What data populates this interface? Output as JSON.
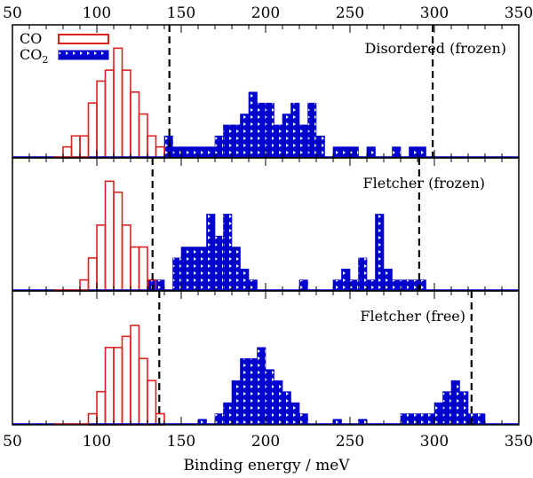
{
  "chart_data": {
    "type": "bar",
    "orientation": "histogram",
    "xlabel": "Binding energy / meV",
    "xlim": [
      50,
      350
    ],
    "xticks": [
      50,
      100,
      150,
      200,
      250,
      300,
      350
    ],
    "xtick_labels": [
      "50",
      "100",
      "150",
      "200",
      "250",
      "300",
      "350"
    ],
    "bin_width": 5,
    "legend": {
      "placement": "top-left",
      "entries": [
        {
          "label": "CO",
          "color": "#dd2222",
          "style": "outline"
        },
        {
          "label": "CO",
          "subscript": "2",
          "color": "#0000cc",
          "style": "filled"
        }
      ]
    },
    "panels": [
      {
        "label": "Disordered (frozen)",
        "ymax": 11,
        "vlines": [
          143,
          299
        ],
        "series": [
          {
            "name": "CO",
            "color": "#dd2222",
            "bins": [
              [
                80,
                1
              ],
              [
                85,
                2
              ],
              [
                90,
                2
              ],
              [
                95,
                5
              ],
              [
                100,
                7
              ],
              [
                105,
                8
              ],
              [
                110,
                10
              ],
              [
                115,
                8
              ],
              [
                120,
                6
              ],
              [
                125,
                4
              ],
              [
                130,
                2
              ],
              [
                135,
                1
              ]
            ]
          },
          {
            "name": "CO2",
            "color": "#0000cc",
            "bins": [
              [
                140,
                2
              ],
              [
                145,
                1
              ],
              [
                150,
                1
              ],
              [
                155,
                1
              ],
              [
                160,
                1
              ],
              [
                165,
                1
              ],
              [
                170,
                2
              ],
              [
                175,
                3
              ],
              [
                180,
                3
              ],
              [
                185,
                4
              ],
              [
                190,
                6
              ],
              [
                195,
                5
              ],
              [
                200,
                5
              ],
              [
                205,
                3
              ],
              [
                210,
                4
              ],
              [
                215,
                5
              ],
              [
                220,
                3
              ],
              [
                225,
                5
              ],
              [
                230,
                2
              ],
              [
                240,
                1
              ],
              [
                245,
                1
              ],
              [
                250,
                1
              ],
              [
                260,
                1
              ],
              [
                275,
                1
              ],
              [
                285,
                1
              ],
              [
                290,
                1
              ]
            ]
          }
        ]
      },
      {
        "label": "Fletcher (frozen)",
        "ymax": 11,
        "vlines": [
          133,
          291
        ],
        "series": [
          {
            "name": "CO",
            "color": "#dd2222",
            "bins": [
              [
                90,
                1
              ],
              [
                95,
                3
              ],
              [
                100,
                6
              ],
              [
                105,
                10
              ],
              [
                110,
                9
              ],
              [
                115,
                6
              ],
              [
                120,
                4
              ],
              [
                125,
                4
              ],
              [
                130,
                1
              ]
            ]
          },
          {
            "name": "CO2",
            "color": "#0000cc",
            "bins": [
              [
                130,
                1
              ],
              [
                135,
                1
              ],
              [
                145,
                3
              ],
              [
                150,
                4
              ],
              [
                155,
                4
              ],
              [
                160,
                4
              ],
              [
                165,
                7
              ],
              [
                170,
                5
              ],
              [
                175,
                7
              ],
              [
                180,
                4
              ],
              [
                185,
                2
              ],
              [
                190,
                1
              ],
              [
                195,
                0
              ],
              [
                220,
                1
              ],
              [
                240,
                1
              ],
              [
                245,
                2
              ],
              [
                250,
                1
              ],
              [
                255,
                3
              ],
              [
                260,
                1
              ],
              [
                265,
                7
              ],
              [
                270,
                2
              ],
              [
                275,
                1
              ],
              [
                280,
                1
              ],
              [
                285,
                1
              ],
              [
                290,
                1
              ]
            ]
          }
        ]
      },
      {
        "label": "Fletcher (free)",
        "ymax": 11,
        "vlines": [
          137,
          322
        ],
        "series": [
          {
            "name": "CO",
            "color": "#dd2222",
            "bins": [
              [
                95,
                1
              ],
              [
                100,
                3
              ],
              [
                105,
                7
              ],
              [
                110,
                7
              ],
              [
                115,
                8
              ],
              [
                120,
                9
              ],
              [
                125,
                6
              ],
              [
                130,
                4
              ],
              [
                135,
                1
              ]
            ]
          },
          {
            "name": "CO2",
            "color": "#0000cc",
            "bins": [
              [
                160,
                0.5
              ],
              [
                170,
                1
              ],
              [
                175,
                2
              ],
              [
                180,
                4
              ],
              [
                185,
                6
              ],
              [
                190,
                6
              ],
              [
                195,
                7
              ],
              [
                200,
                5
              ],
              [
                205,
                4
              ],
              [
                210,
                3
              ],
              [
                215,
                2
              ],
              [
                220,
                1
              ],
              [
                240,
                0.5
              ],
              [
                255,
                0.5
              ],
              [
                280,
                1
              ],
              [
                285,
                1
              ],
              [
                290,
                1
              ],
              [
                295,
                1
              ],
              [
                300,
                2
              ],
              [
                305,
                3
              ],
              [
                310,
                4
              ],
              [
                315,
                3
              ],
              [
                320,
                1
              ],
              [
                325,
                1
              ]
            ]
          }
        ]
      }
    ]
  }
}
